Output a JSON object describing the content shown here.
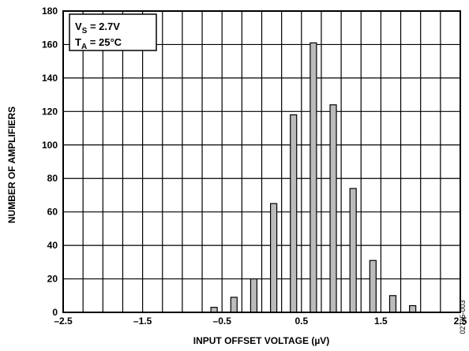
{
  "chart_data": {
    "type": "bar",
    "xlabel": "INPUT OFFSET VOLTAGE (µV)",
    "ylabel": "NUMBER OF AMPLIFIERS",
    "xlim": [
      -2.5,
      2.5
    ],
    "ylim": [
      0,
      180
    ],
    "x_ticks": [
      -2.5,
      -1.5,
      -0.5,
      0.5,
      1.5,
      2.5
    ],
    "x_tick_labels": [
      "–2.5",
      "–1.5",
      "–0.5",
      "0.5",
      "1.5",
      "2.5"
    ],
    "y_ticks": [
      0,
      20,
      40,
      60,
      80,
      100,
      120,
      140,
      160,
      180
    ],
    "y_tick_labels": [
      "0",
      "20",
      "40",
      "60",
      "80",
      "100",
      "120",
      "140",
      "160",
      "180"
    ],
    "grid": true,
    "x": [
      -0.6,
      -0.35,
      -0.1,
      0.15,
      0.4,
      0.65,
      0.9,
      1.15,
      1.4,
      1.65,
      1.9
    ],
    "values": [
      3,
      9,
      20,
      65,
      118,
      161,
      124,
      74,
      31,
      10,
      4
    ],
    "bar_color": "#bbbbbb",
    "legend": {
      "placement": "top-left",
      "line1": {
        "main": "V",
        "sub": "S",
        "rest": " = 2.7V"
      },
      "line2": {
        "main": "T",
        "sub": "A",
        "rest": " = 25°C"
      }
    },
    "figure_code": "02735-003"
  }
}
